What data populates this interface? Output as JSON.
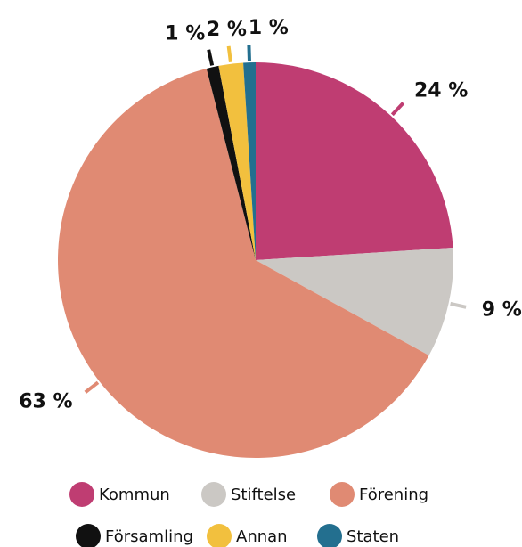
{
  "chart_data": {
    "type": "pie",
    "categories": [
      "Kommun",
      "Stiftelse",
      "Förening",
      "Församling",
      "Annan",
      "Staten"
    ],
    "values": [
      24,
      9,
      63,
      1,
      2,
      1
    ],
    "value_labels": [
      "24 %",
      "9 %",
      "63 %",
      "1 %",
      "2 %",
      "1 %"
    ],
    "colors": [
      "#bf3d72",
      "#cbc8c4",
      "#e08a73",
      "#111111",
      "#f2c03e",
      "#236f8f"
    ]
  }
}
